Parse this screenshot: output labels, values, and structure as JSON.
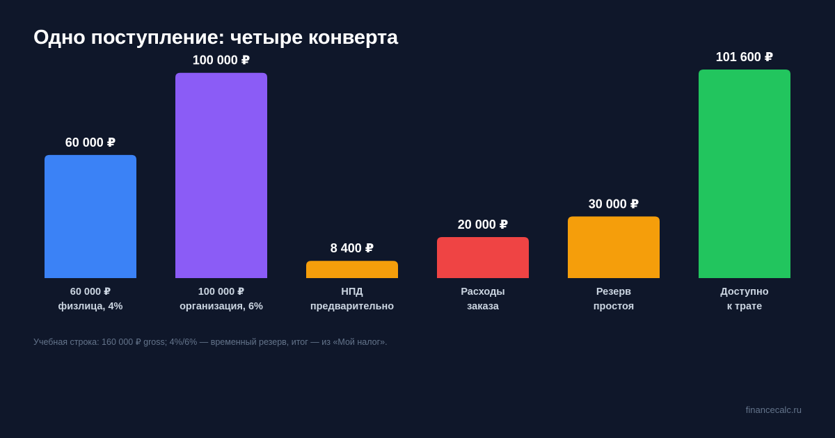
{
  "title": "Одно поступление: четыре конверта",
  "footnote": "Учебная строка: 160 000 ₽ gross; 4%/6% — временный резерв, итог — из «Мой налог».",
  "brand": "financecalc.ru",
  "chart_data": {
    "type": "bar",
    "title": "Одно поступление: четыре конверта",
    "ylim": [
      0,
      101600
    ],
    "grid": false,
    "bars": [
      {
        "value": 60000,
        "label": "60 000 ₽",
        "category": [
          "60 000 ₽",
          "физлица, 4%"
        ],
        "color": "#3b82f6"
      },
      {
        "value": 100000,
        "label": "100 000 ₽",
        "category": [
          "100 000 ₽",
          "организация, 6%"
        ],
        "color": "#8b5cf6"
      },
      {
        "value": 8400,
        "label": "8 400 ₽",
        "category": [
          "НПД",
          "предварительно"
        ],
        "color": "#f59e0b"
      },
      {
        "value": 20000,
        "label": "20 000 ₽",
        "category": [
          "Расходы",
          "заказа"
        ],
        "color": "#ef4444"
      },
      {
        "value": 30000,
        "label": "30 000 ₽",
        "category": [
          "Резерв",
          "простоя"
        ],
        "color": "#f59e0b"
      },
      {
        "value": 101600,
        "label": "101 600 ₽",
        "category": [
          "Доступно",
          "к трате"
        ],
        "color": "#22c55e"
      }
    ]
  }
}
